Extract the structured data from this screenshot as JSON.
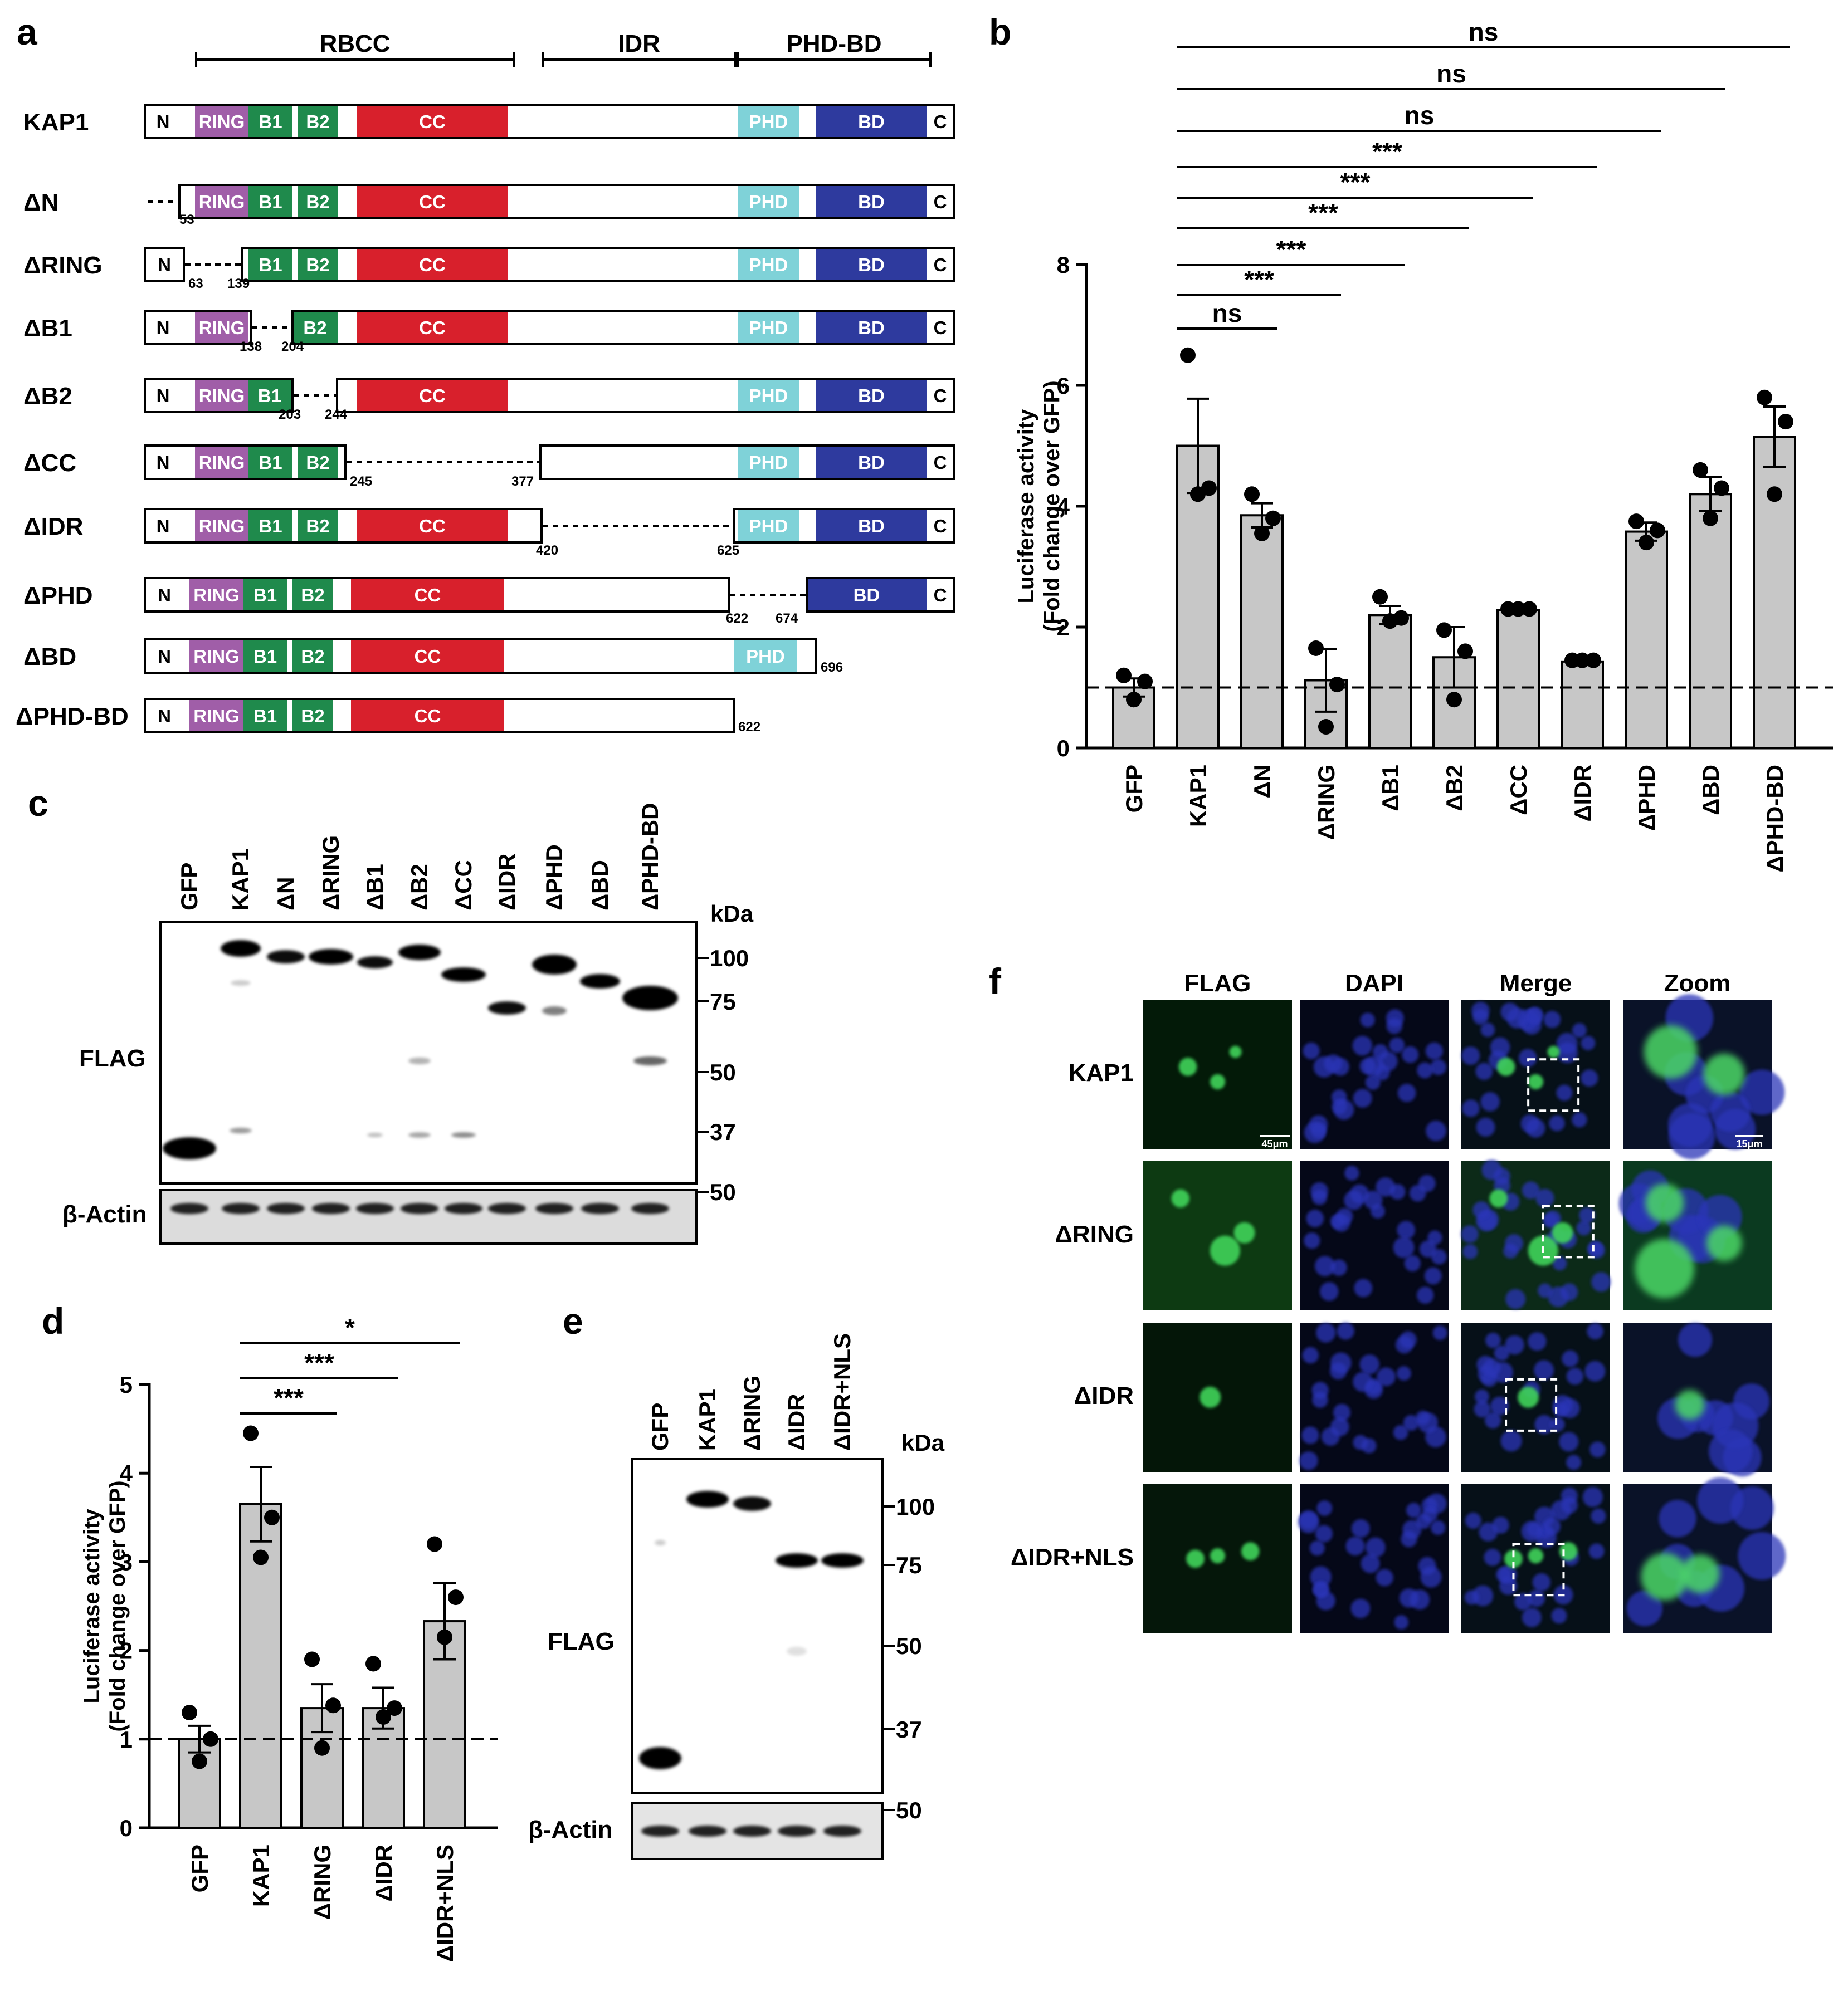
{
  "panel_letters": [
    "a",
    "b",
    "c",
    "d",
    "e",
    "f"
  ],
  "panel_a": {
    "domain_headers": [
      "RBCC",
      "IDR",
      "PHD-BD"
    ],
    "segment_labels": {
      "N": "N",
      "RING": "RING",
      "B1": "B1",
      "B2": "B2",
      "CC": "CC",
      "PHD": "PHD",
      "BD": "BD",
      "C": "C"
    },
    "segment_colors": {
      "N": "#ffffff",
      "RING": "#a05ea8",
      "B1": "#1f8a4c",
      "B2": "#1f8a4c",
      "CC": "#d8202c",
      "IDR": "#ffffff",
      "PHD": "#7fd2d8",
      "BD": "#2e3a9e",
      "C": "#ffffff"
    },
    "constructs": [
      {
        "name": "KAP1",
        "numbers": []
      },
      {
        "name": "ΔN",
        "numbers": [
          "53"
        ]
      },
      {
        "name": "ΔRING",
        "numbers": [
          "63",
          "139"
        ]
      },
      {
        "name": "ΔB1",
        "numbers": [
          "138",
          "204"
        ]
      },
      {
        "name": "ΔB2",
        "numbers": [
          "203",
          "244"
        ]
      },
      {
        "name": "ΔCC",
        "numbers": [
          "245",
          "377"
        ]
      },
      {
        "name": "ΔIDR",
        "numbers": [
          "420",
          "625"
        ]
      },
      {
        "name": "ΔPHD",
        "numbers": [
          "622",
          "674"
        ]
      },
      {
        "name": "ΔBD",
        "numbers": [
          "696"
        ]
      },
      {
        "name": "ΔPHD-BD",
        "numbers": [
          "622"
        ]
      }
    ]
  },
  "panel_c": {
    "lanes": [
      "GFP",
      "KAP1",
      "ΔN",
      "ΔRING",
      "ΔB1",
      "ΔB2",
      "ΔCC",
      "ΔIDR",
      "ΔPHD",
      "ΔBD",
      "ΔPHD-BD"
    ],
    "kda_label": "kDa",
    "markers": [
      "100",
      "75",
      "50",
      "37"
    ],
    "actin_marker": "50",
    "blot_label": "FLAG",
    "actin_label": "β-Actin"
  },
  "panel_e": {
    "lanes": [
      "GFP",
      "KAP1",
      "ΔRING",
      "ΔIDR",
      "ΔIDR+NLS"
    ],
    "kda_label": "kDa",
    "markers": [
      "100",
      "75",
      "50",
      "37"
    ],
    "actin_marker": "50",
    "blot_label": "FLAG",
    "actin_label": "β-Actin"
  },
  "panel_f": {
    "columns": [
      "FLAG",
      "DAPI",
      "Merge",
      "Zoom"
    ],
    "rows": [
      "KAP1",
      "ΔRING",
      "ΔIDR",
      "ΔIDR+NLS"
    ],
    "scale_bars": [
      "45μm",
      "15μm"
    ]
  },
  "chart_data": [
    {
      "panel": "b",
      "type": "bar",
      "categories": [
        "GFP",
        "KAP1",
        "ΔN",
        "ΔRING",
        "ΔB1",
        "ΔB2",
        "ΔCC",
        "ΔIDR",
        "ΔPHD",
        "ΔBD",
        "ΔPHD-BD"
      ],
      "values": [
        1.0,
        5.0,
        3.85,
        1.12,
        2.2,
        1.5,
        2.28,
        1.43,
        3.58,
        4.2,
        5.15
      ],
      "sem": [
        0.15,
        0.78,
        0.2,
        0.52,
        0.15,
        0.5,
        0.05,
        0.03,
        0.15,
        0.28,
        0.5
      ],
      "points": [
        [
          1.2,
          1.1,
          0.8
        ],
        [
          6.5,
          4.3,
          4.2
        ],
        [
          4.2,
          3.8,
          3.55
        ],
        [
          1.65,
          1.05,
          0.35
        ],
        [
          2.5,
          2.15,
          2.1
        ],
        [
          1.95,
          1.6,
          0.8
        ],
        [
          2.3,
          2.3,
          2.3
        ],
        [
          1.45,
          1.45,
          1.45
        ],
        [
          3.75,
          3.6,
          3.4
        ],
        [
          4.6,
          4.3,
          3.8
        ],
        [
          5.8,
          5.4,
          4.2
        ]
      ],
      "ylabel": [
        "Luciferase activity",
        "(Fold change over GFP)"
      ],
      "ylim": [
        0,
        8
      ],
      "yticks": [
        "0",
        "2",
        "4",
        "6",
        "8"
      ],
      "baseline": 1,
      "comparisons": [
        {
          "from": "KAP1",
          "to": "ΔN",
          "label": "ns"
        },
        {
          "from": "KAP1",
          "to": "ΔRING",
          "label": "***"
        },
        {
          "from": "KAP1",
          "to": "ΔB1",
          "label": "***"
        },
        {
          "from": "KAP1",
          "to": "ΔB2",
          "label": "***"
        },
        {
          "from": "KAP1",
          "to": "ΔCC",
          "label": "***"
        },
        {
          "from": "KAP1",
          "to": "ΔIDR",
          "label": "***"
        },
        {
          "from": "KAP1",
          "to": "ΔPHD",
          "label": "ns"
        },
        {
          "from": "KAP1",
          "to": "ΔBD",
          "label": "ns"
        },
        {
          "from": "KAP1",
          "to": "ΔPHD-BD",
          "label": "ns"
        }
      ]
    },
    {
      "panel": "d",
      "type": "bar",
      "categories": [
        "GFP",
        "KAP1",
        "ΔRING",
        "ΔIDR",
        "ΔIDR+NLS"
      ],
      "values": [
        1.0,
        3.65,
        1.35,
        1.35,
        2.33
      ],
      "sem": [
        0.15,
        0.42,
        0.27,
        0.23,
        0.43
      ],
      "points": [
        [
          1.3,
          1.0,
          0.75
        ],
        [
          4.45,
          3.5,
          3.05
        ],
        [
          1.9,
          1.38,
          0.9
        ],
        [
          1.85,
          1.35,
          1.25
        ],
        [
          3.2,
          2.6,
          2.15
        ]
      ],
      "ylabel": [
        "Luciferase activity",
        "(Fold change over GFP)"
      ],
      "ylim": [
        0,
        5
      ],
      "yticks": [
        "0",
        "1",
        "2",
        "3",
        "4",
        "5"
      ],
      "baseline": 1,
      "comparisons": [
        {
          "from": "KAP1",
          "to": "ΔRING",
          "label": "***"
        },
        {
          "from": "KAP1",
          "to": "ΔIDR",
          "label": "***"
        },
        {
          "from": "KAP1",
          "to": "ΔIDR+NLS",
          "label": "*"
        }
      ]
    }
  ]
}
